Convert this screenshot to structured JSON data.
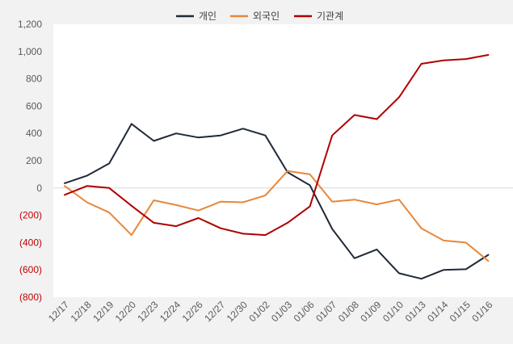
{
  "chart_data": {
    "type": "line",
    "title": "",
    "xlabel": "",
    "ylabel": "",
    "ylim": [
      -800,
      1200
    ],
    "y_ticks": [
      1200,
      1000,
      800,
      600,
      400,
      200,
      0,
      -200,
      -400,
      -600,
      -800
    ],
    "y_tick_labels": [
      "1,200",
      "1,000",
      "800",
      "600",
      "400",
      "200",
      "0",
      "(200)",
      "(400)",
      "(600)",
      "(800)"
    ],
    "negative_tick_color": "#c00000",
    "grid": "zero-line only",
    "legend_position": "top-center",
    "categories": [
      "12/17",
      "12/18",
      "12/19",
      "12/20",
      "12/23",
      "12/24",
      "12/26",
      "12/27",
      "12/30",
      "01/02",
      "01/03",
      "01/06",
      "01/07",
      "01/08",
      "01/09",
      "01/10",
      "01/13",
      "01/14",
      "01/15",
      "01/16"
    ],
    "series": [
      {
        "name": "개인",
        "color": "#1f2937",
        "values": [
          35,
          90,
          180,
          470,
          345,
          400,
          370,
          385,
          435,
          385,
          115,
          20,
          -300,
          -515,
          -450,
          -625,
          -665,
          -600,
          -595,
          -490
        ]
      },
      {
        "name": "외국인",
        "color": "#e8873a",
        "values": [
          15,
          -105,
          -180,
          -345,
          -90,
          -125,
          -165,
          -100,
          -105,
          -55,
          125,
          100,
          -100,
          -85,
          -120,
          -85,
          -295,
          -385,
          -400,
          -535
        ]
      },
      {
        "name": "기관계",
        "color": "#b00000",
        "values": [
          -50,
          15,
          0,
          -130,
          -255,
          -280,
          -220,
          -295,
          -335,
          -345,
          -255,
          -135,
          385,
          535,
          505,
          665,
          910,
          935,
          945,
          975
        ]
      }
    ]
  }
}
